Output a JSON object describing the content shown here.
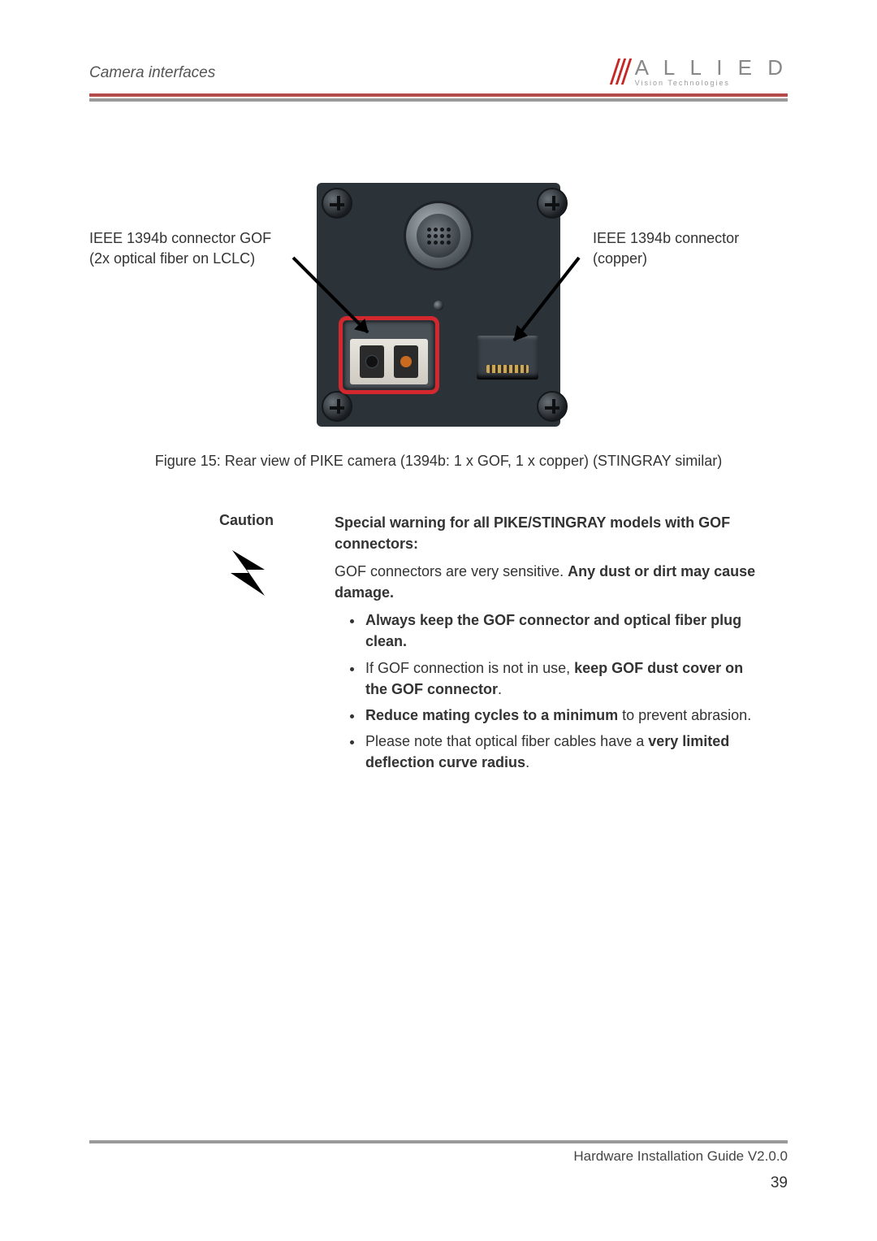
{
  "header": {
    "section_title": "Camera interfaces",
    "logo_main": "A L L I E D",
    "logo_sub": "Vision Technologies"
  },
  "figure": {
    "left_label_line1": "IEEE 1394b connector GOF",
    "left_label_line2": "(2x optical fiber on LCLC)",
    "right_label_line1": "IEEE 1394b connector",
    "right_label_line2": "(copper)",
    "caption": "Figure 15: Rear view of PIKE camera (1394b: 1 x GOF, 1 x copper) (STINGRAY similar)",
    "highlight_color": "#d4282f"
  },
  "caution": {
    "label": "Caution",
    "heading": "Special warning for all PIKE/STINGRAY models with GOF connectors:",
    "intro_plain": "GOF connectors are very sensitive. ",
    "intro_bold": "Any dust or dirt may cause damage.",
    "bullets": [
      {
        "parts": [
          {
            "bold": true,
            "text": "Always keep the GOF connector and optical fiber plug clean."
          }
        ]
      },
      {
        "parts": [
          {
            "bold": false,
            "text": "If GOF connection is not in use, "
          },
          {
            "bold": true,
            "text": "keep GOF dust cover on the GOF connector"
          },
          {
            "bold": false,
            "text": "."
          }
        ]
      },
      {
        "parts": [
          {
            "bold": true,
            "text": "Reduce mating cycles to a minimum"
          },
          {
            "bold": false,
            "text": " to prevent abrasion."
          }
        ]
      },
      {
        "parts": [
          {
            "bold": false,
            "text": "Please note that optical fiber cables have a "
          },
          {
            "bold": true,
            "text": "very limited deflection curve radius"
          },
          {
            "bold": false,
            "text": "."
          }
        ]
      }
    ]
  },
  "footer": {
    "doc": "Hardware Installation Guide V2.0.0",
    "page": "39"
  },
  "colors": {
    "accent_red": "#b44a4a",
    "divider_grey": "#9a9a9a",
    "text": "#333333"
  }
}
